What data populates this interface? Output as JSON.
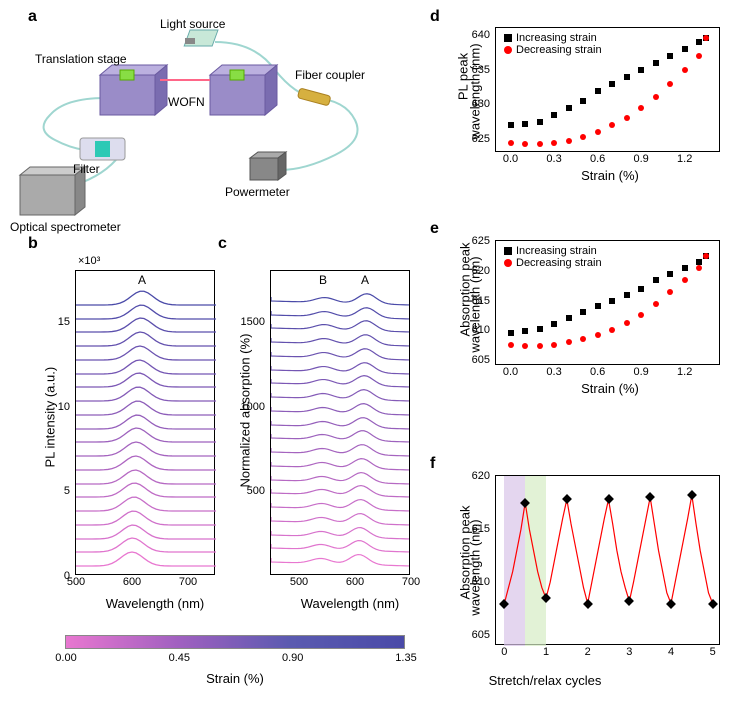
{
  "panels": {
    "a": {
      "label": "a"
    },
    "b": {
      "label": "b",
      "peak_label": "A",
      "ylabel": "PL intensity (a.u.)",
      "xlabel": "Wavelength (nm)",
      "y_multiplier": "×10³",
      "xlim": [
        500,
        750
      ],
      "ylim": [
        0,
        18
      ],
      "xticks": [
        500,
        600,
        700
      ],
      "yticks": [
        0,
        5,
        10,
        15
      ]
    },
    "c": {
      "label": "c",
      "peak_label_a": "A",
      "peak_label_b": "B",
      "ylabel": "Normalized absorption (%)",
      "xlabel": "Wavelength (nm)",
      "xlim": [
        450,
        700
      ],
      "ylim": [
        0,
        1800
      ],
      "xticks": [
        500,
        600,
        700
      ],
      "yticks": [
        500,
        1000,
        1500
      ]
    },
    "d": {
      "label": "d",
      "ylabel_line1": "PL peak",
      "ylabel_line2": "wavelength (nm)",
      "xlabel": "Strain (%)",
      "xlim": [
        -0.1,
        1.45
      ],
      "ylim": [
        623,
        641
      ],
      "xticks": [
        "0.0",
        "0.3",
        "0.6",
        "0.9",
        "1.2"
      ],
      "xtick_vals": [
        0,
        0.3,
        0.6,
        0.9,
        1.2
      ],
      "yticks": [
        625,
        630,
        635,
        640
      ],
      "legend_inc": "Increasing strain",
      "legend_dec": "Decreasing strain",
      "inc_color": "#000000",
      "dec_color": "#ff0000",
      "inc_data": [
        [
          0.0,
          627.0
        ],
        [
          0.1,
          627.2
        ],
        [
          0.2,
          627.5
        ],
        [
          0.3,
          628.5
        ],
        [
          0.4,
          629.5
        ],
        [
          0.5,
          630.5
        ],
        [
          0.6,
          632.0
        ],
        [
          0.7,
          633.0
        ],
        [
          0.8,
          634.0
        ],
        [
          0.9,
          635.0
        ],
        [
          1.0,
          636.0
        ],
        [
          1.1,
          637.0
        ],
        [
          1.2,
          638.0
        ],
        [
          1.3,
          639.0
        ],
        [
          1.35,
          639.5
        ]
      ],
      "dec_data": [
        [
          0.0,
          624.5
        ],
        [
          0.1,
          624.3
        ],
        [
          0.2,
          624.3
        ],
        [
          0.3,
          624.5
        ],
        [
          0.4,
          624.8
        ],
        [
          0.5,
          625.3
        ],
        [
          0.6,
          626.0
        ],
        [
          0.7,
          627.0
        ],
        [
          0.8,
          628.0
        ],
        [
          0.9,
          629.5
        ],
        [
          1.0,
          631.0
        ],
        [
          1.1,
          633.0
        ],
        [
          1.2,
          635.0
        ],
        [
          1.3,
          637.0
        ],
        [
          1.35,
          639.5
        ]
      ]
    },
    "e": {
      "label": "e",
      "ylabel_line1": "Absorption peak",
      "ylabel_line2": "wavelength (nm)",
      "xlabel": "Strain (%)",
      "xlim": [
        -0.1,
        1.45
      ],
      "ylim": [
        604,
        625
      ],
      "xticks": [
        "0.0",
        "0.3",
        "0.6",
        "0.9",
        "1.2"
      ],
      "xtick_vals": [
        0,
        0.3,
        0.6,
        0.9,
        1.2
      ],
      "yticks": [
        605,
        610,
        615,
        620,
        625
      ],
      "legend_inc": "Increasing strain",
      "legend_dec": "Decreasing strain",
      "inc_color": "#000000",
      "dec_color": "#ff0000",
      "inc_data": [
        [
          0.0,
          609.5
        ],
        [
          0.1,
          609.8
        ],
        [
          0.2,
          610.3
        ],
        [
          0.3,
          611.0
        ],
        [
          0.4,
          612.0
        ],
        [
          0.5,
          613.0
        ],
        [
          0.6,
          614.0
        ],
        [
          0.7,
          615.0
        ],
        [
          0.8,
          616.0
        ],
        [
          0.9,
          617.0
        ],
        [
          1.0,
          618.5
        ],
        [
          1.1,
          619.5
        ],
        [
          1.2,
          620.5
        ],
        [
          1.3,
          621.5
        ],
        [
          1.35,
          622.5
        ]
      ],
      "dec_data": [
        [
          0.0,
          607.5
        ],
        [
          0.1,
          607.3
        ],
        [
          0.2,
          607.3
        ],
        [
          0.3,
          607.5
        ],
        [
          0.4,
          608.0
        ],
        [
          0.5,
          608.5
        ],
        [
          0.6,
          609.2
        ],
        [
          0.7,
          610.0
        ],
        [
          0.8,
          611.2
        ],
        [
          0.9,
          612.5
        ],
        [
          1.0,
          614.5
        ],
        [
          1.1,
          616.5
        ],
        [
          1.2,
          618.5
        ],
        [
          1.3,
          620.5
        ],
        [
          1.35,
          622.5
        ]
      ]
    },
    "f": {
      "label": "f",
      "ylabel_line1": "Absorption peak",
      "ylabel_line2": "wavelength (nm)",
      "xlabel": "Stretch/relax cycles",
      "xlim": [
        -0.2,
        5.2
      ],
      "ylim": [
        604,
        620
      ],
      "xticks": [
        0,
        1,
        2,
        3,
        4,
        5
      ],
      "yticks": [
        605,
        610,
        615,
        620
      ],
      "marker_color": "#000000",
      "line_color": "#ff0000",
      "band1_color": "#d9c5e8",
      "band2_color": "#d5ecc5",
      "data": [
        [
          0,
          608
        ],
        [
          0.1,
          609.5
        ],
        [
          0.2,
          611
        ],
        [
          0.3,
          613
        ],
        [
          0.4,
          615
        ],
        [
          0.5,
          617.5
        ],
        [
          0.6,
          615
        ],
        [
          0.7,
          613
        ],
        [
          0.8,
          611
        ],
        [
          0.9,
          609.5
        ],
        [
          1,
          608.5
        ],
        [
          1.1,
          610
        ],
        [
          1.2,
          612
        ],
        [
          1.3,
          614
        ],
        [
          1.4,
          616
        ],
        [
          1.5,
          617.8
        ],
        [
          1.6,
          615.5
        ],
        [
          1.7,
          613.5
        ],
        [
          1.8,
          611.5
        ],
        [
          1.9,
          609.5
        ],
        [
          2,
          608
        ],
        [
          2.1,
          610
        ],
        [
          2.2,
          612
        ],
        [
          2.3,
          614
        ],
        [
          2.4,
          616
        ],
        [
          2.5,
          617.8
        ],
        [
          2.6,
          615.5
        ],
        [
          2.7,
          613
        ],
        [
          2.8,
          611
        ],
        [
          2.9,
          609.5
        ],
        [
          3,
          608.2
        ],
        [
          3.1,
          610
        ],
        [
          3.2,
          612
        ],
        [
          3.3,
          614
        ],
        [
          3.4,
          616
        ],
        [
          3.5,
          618
        ],
        [
          3.6,
          615.5
        ],
        [
          3.7,
          613
        ],
        [
          3.8,
          611
        ],
        [
          3.9,
          609
        ],
        [
          4,
          608
        ],
        [
          4.1,
          610
        ],
        [
          4.2,
          612
        ],
        [
          4.3,
          614
        ],
        [
          4.4,
          616
        ],
        [
          4.5,
          618.2
        ],
        [
          4.6,
          615.5
        ],
        [
          4.7,
          613
        ],
        [
          4.8,
          611
        ],
        [
          4.9,
          609
        ],
        [
          5,
          608
        ]
      ]
    }
  },
  "diagram_labels": {
    "light_source": "Light source",
    "translation_stage": "Translation stage",
    "wofn": "WOFN",
    "fiber_coupler": "Fiber coupler",
    "filter": "Filter",
    "powermeter": "Powermeter",
    "optical_spectrometer": "Optical spectrometer"
  },
  "colorbar": {
    "label": "Strain (%)",
    "ticks": [
      "0.00",
      "0.45",
      "0.90",
      "1.35"
    ],
    "stops": [
      "#e877d0",
      "#a060c0",
      "#5a5ab0",
      "#4a4aa8"
    ]
  },
  "waterfall": {
    "n_lines": 20,
    "color_low": "#e877d0",
    "color_high": "#4a4aa8"
  }
}
